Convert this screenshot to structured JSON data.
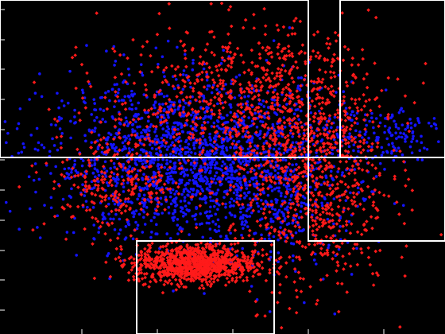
{
  "chart_data": {
    "type": "scatter",
    "title": "",
    "xlabel": "",
    "ylabel": "",
    "xlim": [
      0,
      560
    ],
    "ylim": [
      0,
      420
    ],
    "grid": false,
    "legend": "none",
    "background": "#000000",
    "series": [
      {
        "name": "red",
        "color": "#ff1a1a",
        "marker": "diamond",
        "clusters": [
          {
            "cx": 300,
            "cy": 300,
            "sx": 85,
            "sy": 45,
            "n": 650
          },
          {
            "cx": 245,
            "cy": 88,
            "sx": 38,
            "sy": 12,
            "n": 1000
          },
          {
            "cx": 390,
            "cy": 200,
            "sx": 50,
            "sy": 75,
            "n": 850
          },
          {
            "cx": 150,
            "cy": 190,
            "sx": 45,
            "sy": 30,
            "n": 280
          }
        ]
      },
      {
        "name": "blue",
        "color": "#1414ff",
        "marker": "circle",
        "clusters": [
          {
            "cx": 250,
            "cy": 220,
            "sx": 95,
            "sy": 50,
            "n": 1900
          },
          {
            "cx": 480,
            "cy": 255,
            "sx": 40,
            "sy": 18,
            "n": 140
          },
          {
            "cx": 355,
            "cy": 165,
            "sx": 45,
            "sy": 50,
            "n": 220
          }
        ]
      }
    ],
    "regions": [
      {
        "name": "region-a",
        "x": [
          0,
          388
        ],
        "y": [
          222,
          420
        ]
      },
      {
        "name": "region-b",
        "x": [
          388,
          560
        ],
        "y": [
          117,
          222
        ]
      },
      {
        "name": "region-c",
        "x": [
          428,
          560
        ],
        "y": [
          222,
          420
        ]
      },
      {
        "name": "region-d",
        "x": [
          172,
          345
        ],
        "y": [
          0,
          117
        ]
      }
    ],
    "left_ticks": [
      30,
      68,
      105,
      143,
      181,
      219,
      257,
      295,
      333,
      370,
      408
    ],
    "bottom_ticks": [
      103,
      198,
      293,
      388,
      483
    ]
  }
}
